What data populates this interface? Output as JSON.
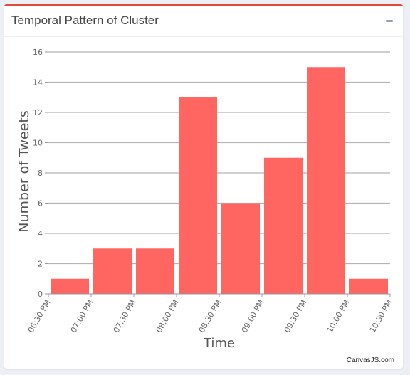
{
  "panel": {
    "title": "Temporal Pattern of Cluster",
    "collapse_icon": "minus-icon",
    "credit": "CanvasJS.com"
  },
  "chart_data": {
    "type": "bar",
    "title": "",
    "xlabel": "Time",
    "ylabel": "Number of Tweets",
    "x_ticks": [
      "06:30 PM",
      "07:00 PM",
      "07:30 PM",
      "08:00 PM",
      "08:30 PM",
      "09:00 PM",
      "09:30 PM",
      "10:00 PM",
      "10:30 PM"
    ],
    "series": [
      {
        "values": [
          1,
          3,
          3,
          13,
          6,
          9,
          15,
          1
        ],
        "color": "#ff6661"
      }
    ],
    "ylim": [
      0,
      16
    ],
    "yticks": [
      0,
      2,
      4,
      6,
      8,
      10,
      12,
      14,
      16
    ],
    "grid": true,
    "legend": "none"
  }
}
